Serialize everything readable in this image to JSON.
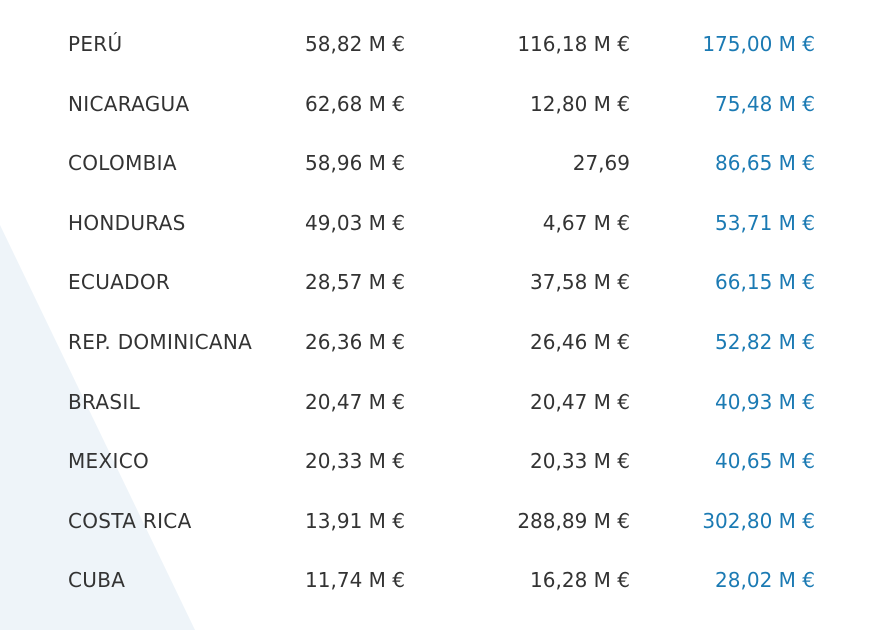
{
  "table": {
    "rows": [
      [
        "PERÚ",
        "58,82 M €",
        "116,18 M €",
        "175,00 M €"
      ],
      [
        "NICARAGUA",
        "62,68 M €",
        "12,80 M €",
        "75,48 M €"
      ],
      [
        "COLOMBIA",
        "58,96 M €",
        "27,69",
        "86,65 M €"
      ],
      [
        "HONDURAS",
        "49,03 M €",
        "4,67 M €",
        "53,71 M €"
      ],
      [
        "ECUADOR",
        "28,57 M €",
        "37,58 M €",
        "66,15 M €"
      ],
      [
        "REP. DOMINICANA",
        "26,36 M €",
        "26,46 M €",
        "52,82 M €"
      ],
      [
        "BRASIL",
        "20,47 M €",
        "20,47 M €",
        "40,93 M €"
      ],
      [
        "MEXICO",
        "20,33 M €",
        "20,33 M €",
        "40,65 M €"
      ],
      [
        "COSTA RICA",
        "13,91 M €",
        "288,89 M €",
        "302,80 M €"
      ],
      [
        "CUBA",
        "11,74 M €",
        "16,28 M €",
        "28,02 M €"
      ]
    ]
  }
}
